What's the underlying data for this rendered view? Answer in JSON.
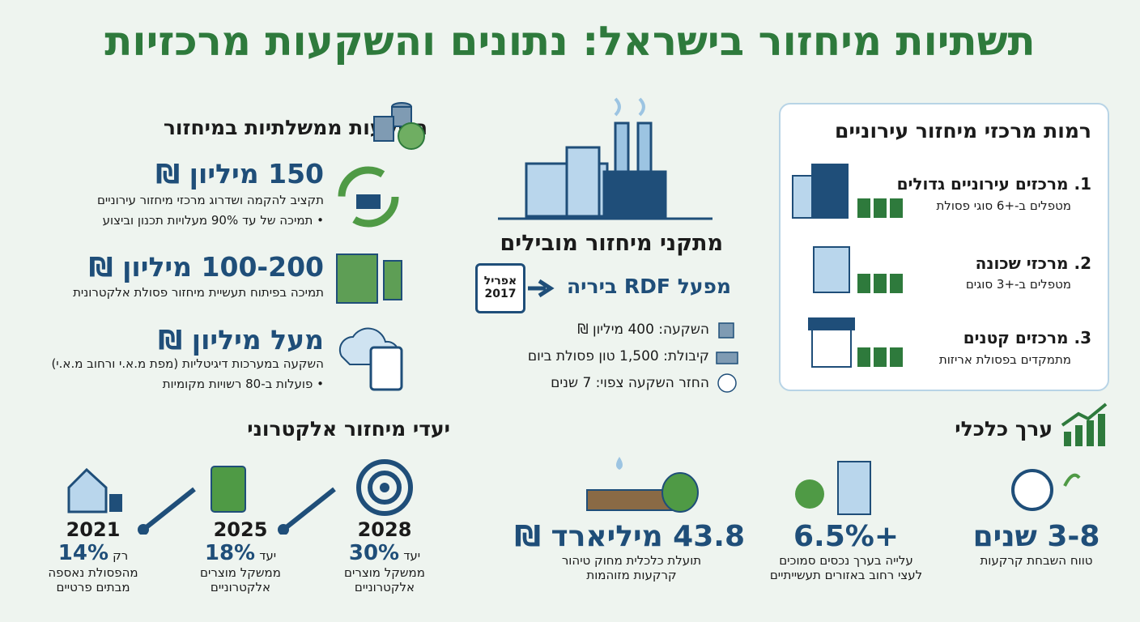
{
  "title": "תשתיות מיחזור בישראל: נתונים והשקעות מרכזיות",
  "investments": {
    "title": "השקעות ממשלתיות במיחזור",
    "items": [
      {
        "amount": "150 מיליון ₪",
        "lines": [
          "תקציב להקמה ושדרוג מרכזי מיחזור עירוניים",
          "• תמיכה של עד 90% מעלויות תכנון וביצוע"
        ]
      },
      {
        "amount": "100-200 מיליון ₪",
        "lines": [
          "תמיכה בפיתוח תעשיית מיחזור פסולת אלקטרונית"
        ]
      },
      {
        "amount": "מעל מיליון ₪",
        "lines": [
          "השקעה במערכות דיגיטליות (מפת מ.א.י ורחוב מ.א.י)",
          "• פועלות ב-80 רשויות מקומיות"
        ]
      }
    ]
  },
  "facilities": {
    "title": "מתקני מיחזור מובילים",
    "date": [
      "אפריל",
      "2017"
    ],
    "plant": "מפעל RDF ביריה",
    "rows": [
      "השקעה: 400 מיליון ₪",
      "קיבולת: 1,500 טון פסולת ביום",
      "החזר השקעה צפוי: 7 שנים"
    ]
  },
  "levels": {
    "title": "רמות מרכזי מיחזור עירוניים",
    "items": [
      {
        "name": "1. מרכזים עירוניים גדולים",
        "desc": "מטפלים ב-+6 סוגי פסולת"
      },
      {
        "name": "2. מרכזי שכונה",
        "desc": "מטפלים ב-+3 סוגים"
      },
      {
        "name": "3. מרכזים קטנים",
        "desc": "מתמקדים בפסולת אריזות"
      }
    ]
  },
  "ewaste": {
    "title": "יעדי מיחזור אלקטרוני",
    "steps": [
      {
        "year": "2021",
        "prefix": "רק",
        "value": "14%",
        "lines": [
          "מהפסולת נאספה",
          "מבתים פרטיים"
        ]
      },
      {
        "year": "2025",
        "prefix": "יעד",
        "value": "18%",
        "lines": [
          "ממשקל מוצרים",
          "אלקטרוניים"
        ]
      },
      {
        "year": "2028",
        "prefix": "יעד",
        "value": "30%",
        "lines": [
          "ממשקל מוצרים",
          "אלקטרוניים"
        ]
      }
    ]
  },
  "economy": {
    "title": "ערך כלכלי",
    "items": [
      {
        "value": "3-8 שנים",
        "lines": [
          "טווח השבחת קרקעות"
        ]
      },
      {
        "value": "+6.5%",
        "lines": [
          "עלייה בערך נכסים סמוכים",
          "לעצי רחוב באזורים תעשייתיים"
        ]
      },
      {
        "value": "43.8 מיליארד ₪",
        "lines": [
          "תועלת כלכלית מחוק טיהור",
          "קרקעות מזוהמות"
        ]
      }
    ]
  }
}
